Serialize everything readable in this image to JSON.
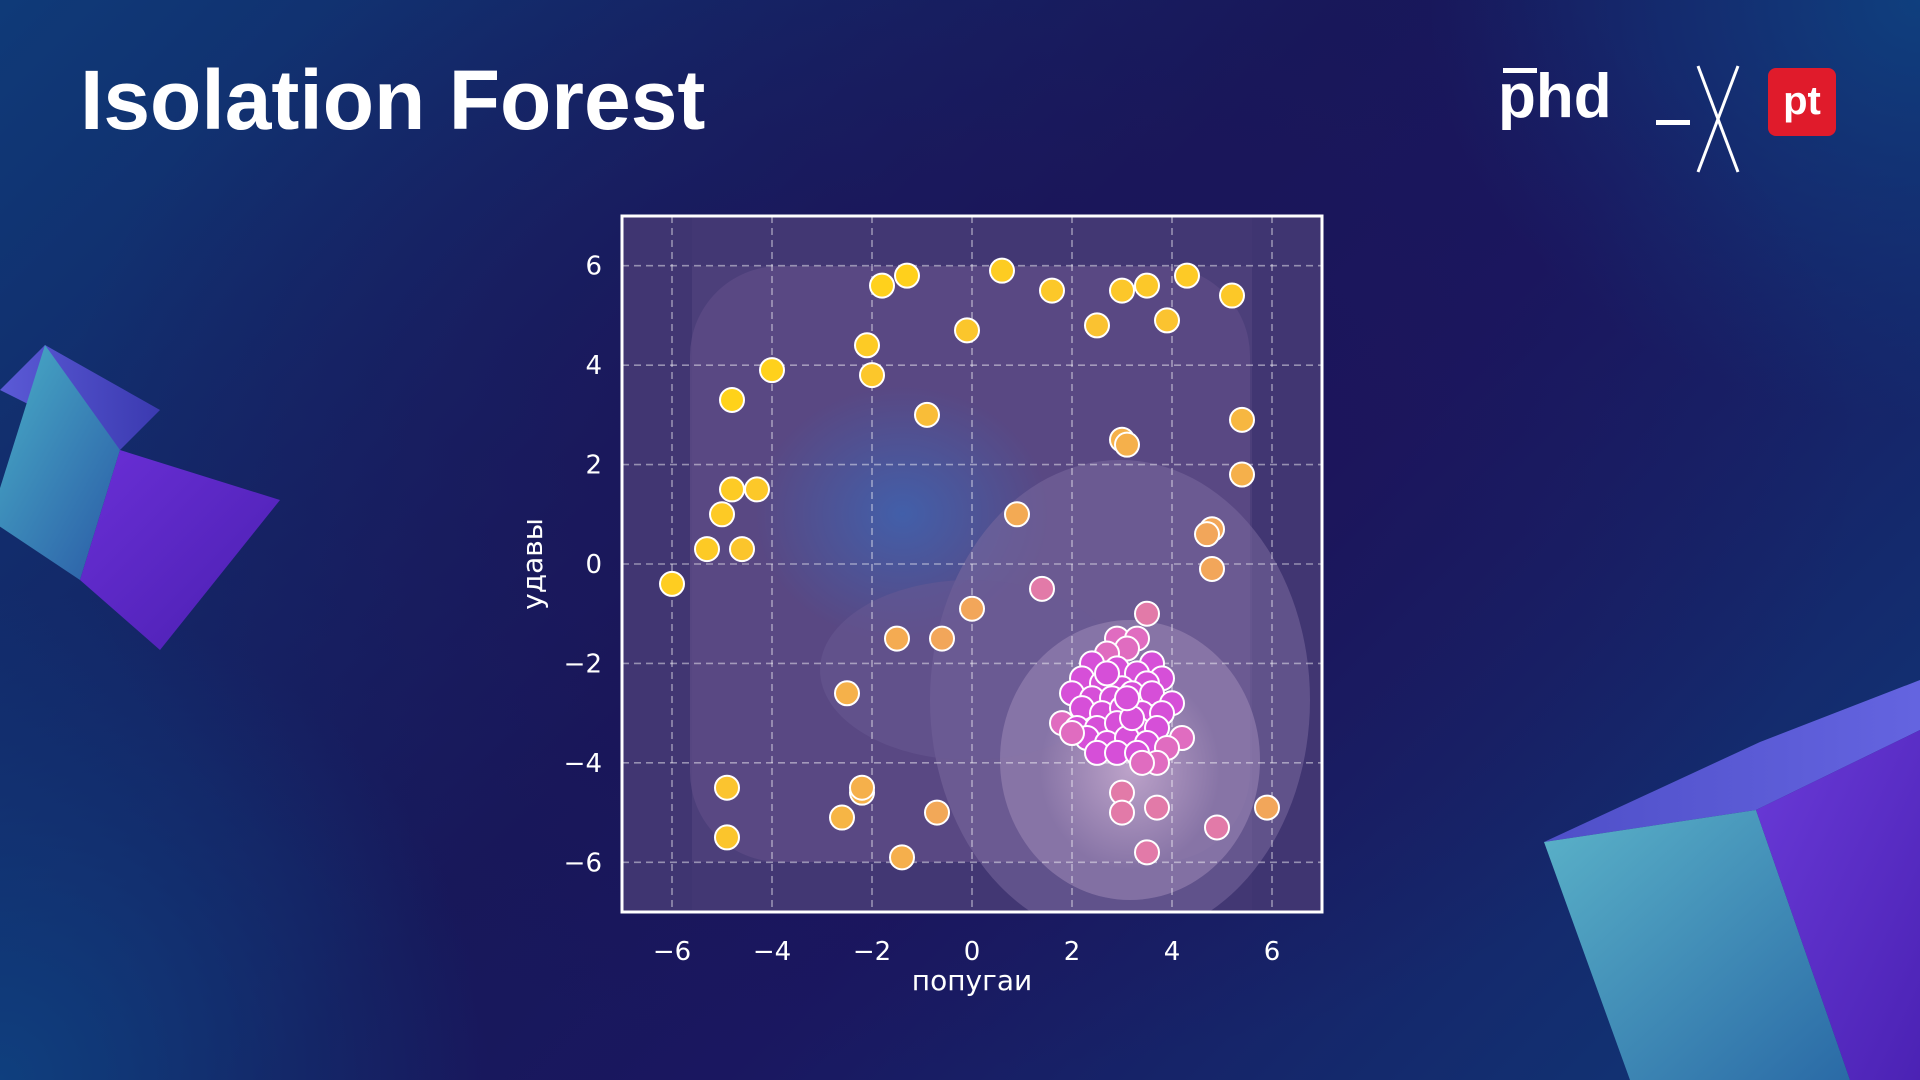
{
  "page": {
    "title": "Isolation Forest"
  },
  "logo": {
    "brand_text": "phd",
    "badge_text": "pt",
    "badge_color": "#e01b2b",
    "icon": "phd-x-pt-logo"
  },
  "colors": {
    "normal_points": "#d64fd8",
    "anomaly_points": "#f2a65a",
    "strong_anomaly_points": "#ffd21a",
    "point_edge": "#ffffff"
  },
  "chart_data": {
    "type": "scatter",
    "xlabel": "попугаи",
    "ylabel": "удавы",
    "xlim": [
      -7,
      7
    ],
    "ylim": [
      -7,
      7
    ],
    "xticks": [
      -6,
      -4,
      -2,
      0,
      2,
      4,
      6
    ],
    "yticks": [
      -6,
      -4,
      -2,
      0,
      2,
      4,
      6
    ],
    "tick_labels": [
      "−6",
      "−4",
      "−2",
      "0",
      "2",
      "4",
      "6"
    ],
    "grid": true,
    "background": "isolation forest anomaly score contour",
    "series": [
      {
        "points": [
          [
            -1.3,
            5.8
          ],
          [
            -1.8,
            5.6
          ],
          [
            0.6,
            5.9
          ],
          [
            1.6,
            5.5
          ],
          [
            3.0,
            5.5
          ],
          [
            3.5,
            5.6
          ],
          [
            4.3,
            5.8
          ],
          [
            5.2,
            5.4
          ],
          [
            -0.1,
            4.7
          ],
          [
            2.5,
            4.8
          ],
          [
            3.9,
            4.9
          ],
          [
            -2.1,
            4.4
          ],
          [
            -2.0,
            3.8
          ],
          [
            -4.0,
            3.9
          ],
          [
            -4.8,
            3.3
          ],
          [
            -0.9,
            3.0
          ],
          [
            5.4,
            2.9
          ],
          [
            3.0,
            2.5
          ],
          [
            3.1,
            2.4
          ],
          [
            5.4,
            1.8
          ],
          [
            -4.8,
            1.5
          ],
          [
            -4.3,
            1.5
          ],
          [
            -5.0,
            1.0
          ],
          [
            0.9,
            1.0
          ],
          [
            4.8,
            0.7
          ],
          [
            4.7,
            0.6
          ],
          [
            -5.3,
            0.3
          ],
          [
            -4.6,
            0.3
          ],
          [
            4.8,
            -0.1
          ],
          [
            -6.0,
            -0.4
          ],
          [
            1.4,
            -0.5
          ],
          [
            0.0,
            -0.9
          ],
          [
            3.5,
            -1.0
          ],
          [
            -1.5,
            -1.5
          ],
          [
            -0.6,
            -1.5
          ],
          [
            -2.5,
            -2.6
          ],
          [
            -2.2,
            -4.6
          ],
          [
            -2.2,
            -4.5
          ],
          [
            -4.9,
            -4.5
          ],
          [
            3.0,
            -4.6
          ],
          [
            3.0,
            -5.0
          ],
          [
            3.7,
            -4.9
          ],
          [
            -0.7,
            -5.0
          ],
          [
            -2.6,
            -5.1
          ],
          [
            5.9,
            -4.9
          ],
          [
            4.9,
            -5.3
          ],
          [
            -4.9,
            -5.5
          ],
          [
            -1.4,
            -5.9
          ],
          [
            3.5,
            -5.8
          ]
        ]
      },
      {
        "points": [
          [
            2.9,
            -1.5
          ],
          [
            3.3,
            -1.5
          ],
          [
            3.1,
            -1.7
          ],
          [
            2.7,
            -1.8
          ],
          [
            3.6,
            -2.0
          ],
          [
            2.4,
            -2.0
          ],
          [
            2.9,
            -2.1
          ],
          [
            3.3,
            -2.2
          ],
          [
            3.8,
            -2.3
          ],
          [
            2.2,
            -2.3
          ],
          [
            2.6,
            -2.4
          ],
          [
            3.0,
            -2.5
          ],
          [
            3.5,
            -2.4
          ],
          [
            2.0,
            -2.6
          ],
          [
            2.4,
            -2.7
          ],
          [
            2.8,
            -2.7
          ],
          [
            3.2,
            -2.6
          ],
          [
            3.6,
            -2.6
          ],
          [
            4.0,
            -2.8
          ],
          [
            2.2,
            -2.9
          ],
          [
            2.6,
            -3.0
          ],
          [
            3.0,
            -2.9
          ],
          [
            3.4,
            -3.0
          ],
          [
            3.8,
            -3.0
          ],
          [
            1.8,
            -3.2
          ],
          [
            2.1,
            -3.3
          ],
          [
            2.5,
            -3.3
          ],
          [
            2.9,
            -3.2
          ],
          [
            3.3,
            -3.3
          ],
          [
            3.7,
            -3.3
          ],
          [
            4.2,
            -3.5
          ],
          [
            2.3,
            -3.5
          ],
          [
            2.7,
            -3.6
          ],
          [
            3.1,
            -3.5
          ],
          [
            3.5,
            -3.6
          ],
          [
            3.9,
            -3.7
          ],
          [
            2.5,
            -3.8
          ],
          [
            2.9,
            -3.8
          ],
          [
            3.3,
            -3.8
          ],
          [
            3.7,
            -4.0
          ],
          [
            3.4,
            -4.0
          ],
          [
            2.0,
            -3.4
          ],
          [
            3.2,
            -3.1
          ],
          [
            2.7,
            -2.2
          ],
          [
            3.1,
            -2.7
          ]
        ]
      }
    ]
  }
}
